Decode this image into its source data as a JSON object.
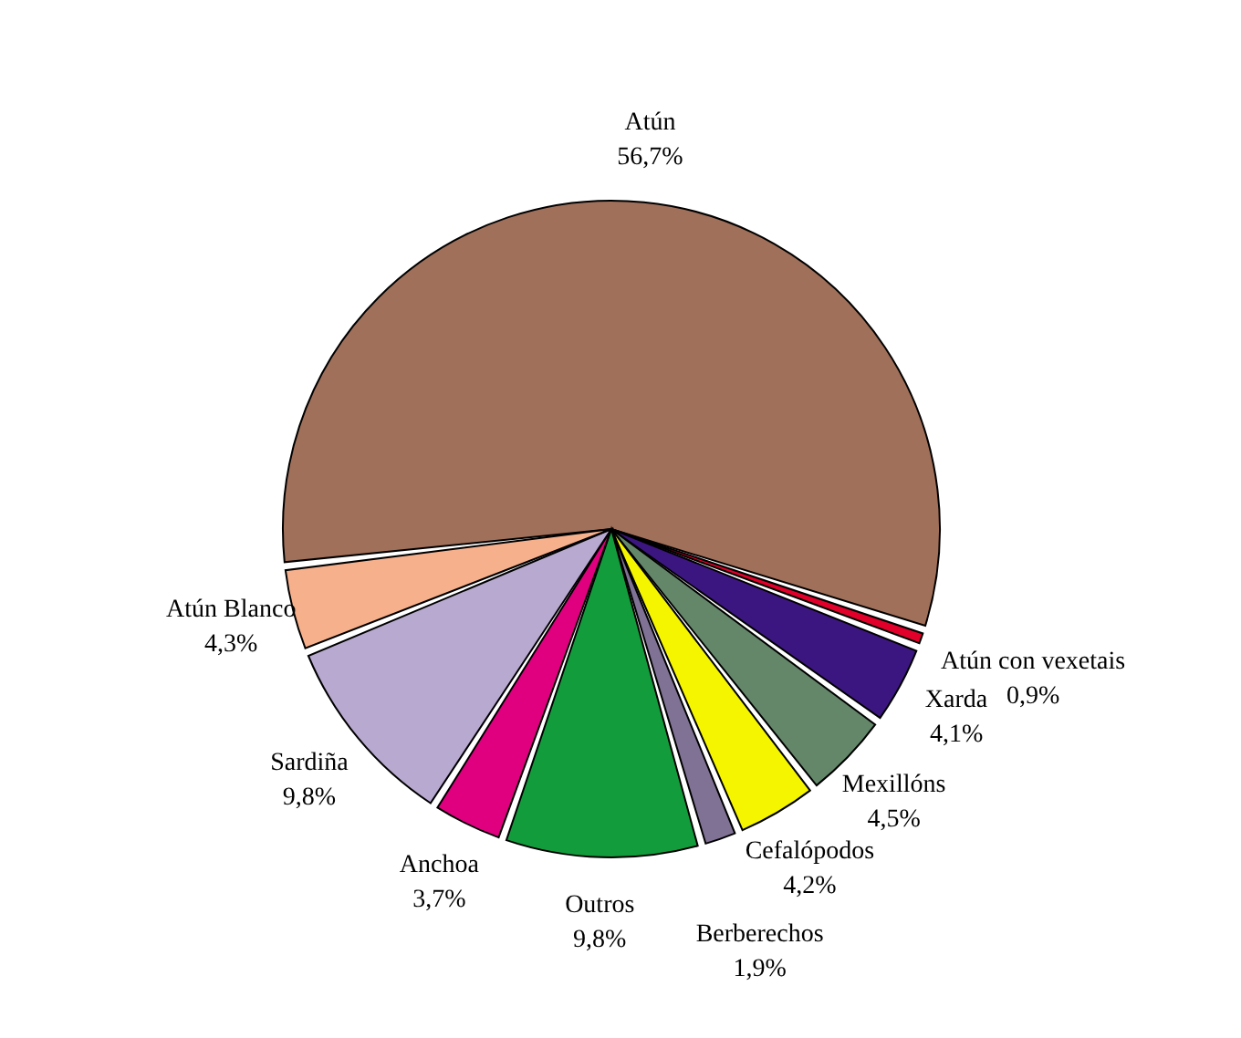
{
  "chart_data": {
    "type": "pie",
    "categories": [
      "Atún",
      "Atún con vexetais",
      "Xarda",
      "Mexillóns",
      "Cefalópodos",
      "Berberechos",
      "Outros",
      "Anchoa",
      "Sardiña",
      "Atún Blanco"
    ],
    "values": [
      56.7,
      0.9,
      4.1,
      4.5,
      4.2,
      1.9,
      9.8,
      3.7,
      9.8,
      4.3
    ],
    "value_labels": [
      "56,7%",
      "0,9%",
      "4,1%",
      "4,5%",
      "4,2%",
      "1,9%",
      "9,8%",
      "3,7%",
      "9,8%",
      "4,3%"
    ],
    "colors": [
      "#a0705a",
      "#e0002a",
      "#3c1680",
      "#64876a",
      "#f5f500",
      "#7f7294",
      "#139c3c",
      "#e0007f",
      "#b8a9d0",
      "#f7b08c"
    ]
  }
}
